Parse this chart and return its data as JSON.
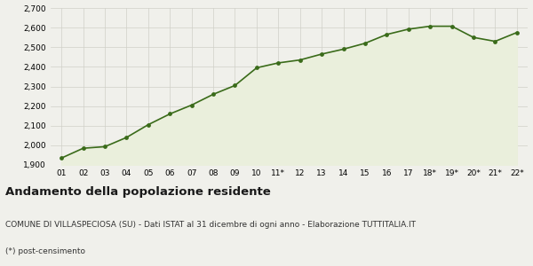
{
  "x_labels": [
    "01",
    "02",
    "03",
    "04",
    "05",
    "06",
    "07",
    "08",
    "09",
    "10",
    "11*",
    "12",
    "13",
    "14",
    "15",
    "16",
    "17",
    "18*",
    "19*",
    "20*",
    "21*",
    "22*"
  ],
  "y_values": [
    1935,
    1985,
    1993,
    2040,
    2105,
    2160,
    2205,
    2260,
    2305,
    2395,
    2420,
    2435,
    2465,
    2490,
    2520,
    2565,
    2592,
    2607,
    2607,
    2550,
    2530,
    2575
  ],
  "ylim": [
    1900,
    2700
  ],
  "yticks": [
    1900,
    2000,
    2100,
    2200,
    2300,
    2400,
    2500,
    2600,
    2700
  ],
  "line_color": "#3a6b1a",
  "fill_color": "#eaefdc",
  "marker_color": "#3a6b1a",
  "background_color": "#f0f0eb",
  "grid_color": "#d0d0c8",
  "title": "Andamento della popolazione residente",
  "subtitle": "COMUNE DI VILLASPECIOSA (SU) - Dati ISTAT al 31 dicembre di ogni anno - Elaborazione TUTTITALIA.IT",
  "footnote": "(*) post-censimento",
  "title_fontsize": 9.5,
  "subtitle_fontsize": 6.5,
  "footnote_fontsize": 6.5,
  "tick_fontsize": 6.5
}
